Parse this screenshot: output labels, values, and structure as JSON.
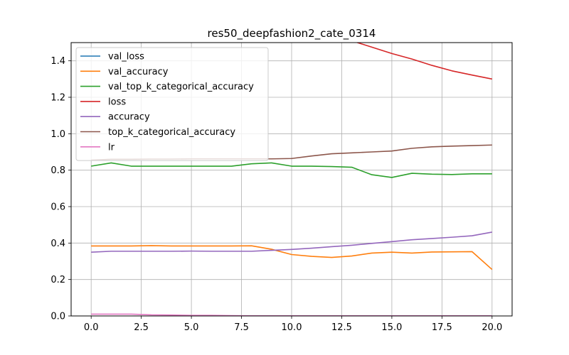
{
  "chart_data": {
    "type": "line",
    "title": "res50_deepfashion2_cate_0314",
    "xlabel": "",
    "ylabel": "",
    "xlim": [
      -1.0,
      21.0
    ],
    "ylim": [
      0.0,
      1.5
    ],
    "xticks": [
      0.0,
      2.5,
      5.0,
      7.5,
      10.0,
      12.5,
      15.0,
      17.5,
      20.0
    ],
    "xtick_labels": [
      "0.0",
      "2.5",
      "5.0",
      "7.5",
      "10.0",
      "12.5",
      "15.0",
      "17.5",
      "20.0"
    ],
    "yticks": [
      0.0,
      0.2,
      0.4,
      0.6,
      0.8,
      1.0,
      1.2,
      1.4
    ],
    "ytick_labels": [
      "0.0",
      "0.2",
      "0.4",
      "0.6",
      "0.8",
      "1.0",
      "1.2",
      "1.4"
    ],
    "grid": true,
    "legend_position": "top-left",
    "x": [
      0,
      1,
      2,
      3,
      4,
      5,
      6,
      7,
      8,
      9,
      10,
      11,
      12,
      13,
      14,
      15,
      16,
      17,
      18,
      19,
      20
    ],
    "series": [
      {
        "name": "val_loss",
        "color": "#1f77b4",
        "values": [
          null,
          null,
          null,
          null,
          null,
          null,
          null,
          null,
          null,
          null,
          null,
          null,
          null,
          null,
          null,
          null,
          null,
          null,
          null,
          null,
          null
        ]
      },
      {
        "name": "val_accuracy",
        "color": "#ff7f0e",
        "values": [
          0.384,
          0.384,
          0.384,
          0.386,
          0.384,
          0.384,
          0.384,
          0.384,
          0.385,
          0.366,
          0.337,
          0.327,
          0.321,
          0.329,
          0.345,
          0.35,
          0.345,
          0.351,
          0.352,
          0.353,
          0.255
        ]
      },
      {
        "name": "val_top_k_categorical_accuracy",
        "color": "#2ca02c",
        "values": [
          0.822,
          0.84,
          0.822,
          0.822,
          0.822,
          0.822,
          0.822,
          0.822,
          0.835,
          0.84,
          0.822,
          0.822,
          0.82,
          0.816,
          0.775,
          0.76,
          0.783,
          0.778,
          0.776,
          0.78,
          0.78
        ]
      },
      {
        "name": "loss",
        "color": "#d62728",
        "values": [
          null,
          null,
          null,
          null,
          null,
          null,
          null,
          null,
          null,
          null,
          null,
          null,
          1.57,
          1.51,
          1.475,
          1.44,
          1.41,
          1.375,
          1.345,
          1.322,
          1.3
        ]
      },
      {
        "name": "accuracy",
        "color": "#9467bd",
        "values": [
          0.35,
          0.355,
          0.355,
          0.355,
          0.355,
          0.356,
          0.355,
          0.355,
          0.355,
          0.36,
          0.365,
          0.372,
          0.38,
          0.388,
          0.398,
          0.408,
          0.418,
          0.425,
          0.432,
          0.44,
          0.46
        ]
      },
      {
        "name": "top_k_categorical_accuracy",
        "color": "#8c564b",
        "values": [
          0.855,
          0.86,
          0.86,
          0.861,
          0.861,
          0.862,
          0.862,
          0.862,
          0.862,
          0.862,
          0.864,
          0.878,
          0.89,
          0.895,
          0.9,
          0.905,
          0.92,
          0.928,
          0.932,
          0.935,
          0.938
        ]
      },
      {
        "name": "lr",
        "color": "#e377c2",
        "values": [
          0.01,
          0.01,
          0.01,
          0.006,
          0.005,
          0.003,
          0.003,
          0.002,
          0.001,
          0.001,
          0.001,
          0.001,
          0.001,
          0.001,
          0.001,
          0.001,
          0.001,
          0.001,
          0.001,
          0.001,
          0.001
        ]
      }
    ]
  }
}
